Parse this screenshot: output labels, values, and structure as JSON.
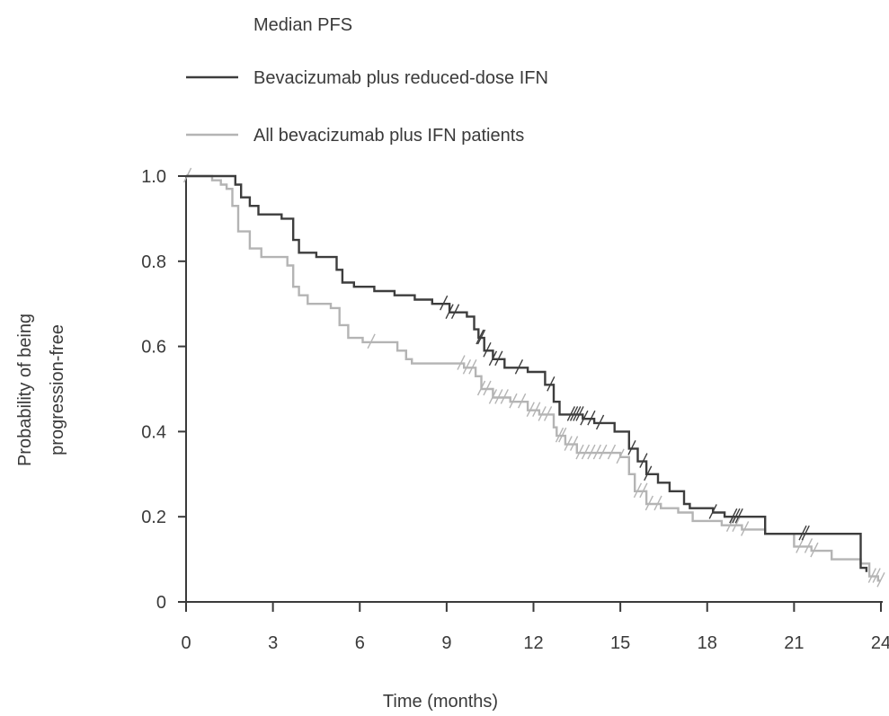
{
  "chart_data": {
    "type": "line",
    "title": "",
    "legend_title": "Median PFS",
    "xlabel": "Time (months)",
    "ylabel_lines": [
      "Probability of being",
      "progression-free"
    ],
    "xlim": [
      0,
      24
    ],
    "ylim": [
      0,
      1.0
    ],
    "x_ticks": [
      0,
      3,
      6,
      9,
      12,
      15,
      18,
      21,
      24
    ],
    "y_ticks": [
      0,
      0.2,
      0.4,
      0.6,
      0.8,
      1.0
    ],
    "y_tick_labels": [
      "0",
      "0.2",
      "0.4",
      "0.6",
      "0.8",
      "1.0"
    ],
    "grid": false,
    "legend_position": "top",
    "series": [
      {
        "name": "Bevacizumab plus reduced-dose IFN",
        "color": "#3d3d3d",
        "step": true,
        "points": [
          [
            0,
            1.0
          ],
          [
            1.7,
            0.98
          ],
          [
            1.9,
            0.95
          ],
          [
            2.2,
            0.93
          ],
          [
            2.5,
            0.91
          ],
          [
            3.3,
            0.9
          ],
          [
            3.7,
            0.85
          ],
          [
            3.9,
            0.82
          ],
          [
            4.5,
            0.81
          ],
          [
            5.2,
            0.78
          ],
          [
            5.4,
            0.75
          ],
          [
            5.8,
            0.74
          ],
          [
            6.5,
            0.73
          ],
          [
            7.2,
            0.72
          ],
          [
            7.9,
            0.71
          ],
          [
            8.5,
            0.7
          ],
          [
            9.1,
            0.68
          ],
          [
            9.7,
            0.67
          ],
          [
            9.95,
            0.64
          ],
          [
            10.1,
            0.62
          ],
          [
            10.3,
            0.59
          ],
          [
            10.6,
            0.57
          ],
          [
            11.0,
            0.55
          ],
          [
            11.8,
            0.54
          ],
          [
            12.4,
            0.51
          ],
          [
            12.7,
            0.47
          ],
          [
            12.9,
            0.44
          ],
          [
            13.7,
            0.43
          ],
          [
            14.1,
            0.42
          ],
          [
            14.8,
            0.4
          ],
          [
            15.3,
            0.36
          ],
          [
            15.6,
            0.33
          ],
          [
            15.9,
            0.3
          ],
          [
            16.3,
            0.28
          ],
          [
            16.7,
            0.26
          ],
          [
            17.2,
            0.23
          ],
          [
            17.4,
            0.22
          ],
          [
            18.2,
            0.21
          ],
          [
            18.6,
            0.2
          ],
          [
            20.0,
            0.16
          ],
          [
            23.3,
            0.08
          ],
          [
            23.5,
            0.07
          ]
        ],
        "censor_x": [
          8.9,
          9.1,
          9.3,
          10.15,
          10.2,
          10.4,
          10.6,
          10.8,
          11.5,
          12.6,
          13.3,
          13.4,
          13.5,
          13.6,
          13.75,
          14.0,
          14.3,
          15.4,
          15.8,
          15.95,
          18.2,
          18.9,
          19.0,
          19.1,
          21.3,
          21.4
        ]
      },
      {
        "name": "All bevacizumab plus IFN patients",
        "color": "#b4b4b4",
        "step": true,
        "points": [
          [
            0,
            1.0
          ],
          [
            0.9,
            0.99
          ],
          [
            1.2,
            0.98
          ],
          [
            1.4,
            0.97
          ],
          [
            1.6,
            0.93
          ],
          [
            1.8,
            0.87
          ],
          [
            2.2,
            0.83
          ],
          [
            2.6,
            0.81
          ],
          [
            3.5,
            0.79
          ],
          [
            3.7,
            0.74
          ],
          [
            3.9,
            0.72
          ],
          [
            4.2,
            0.7
          ],
          [
            5.0,
            0.69
          ],
          [
            5.3,
            0.65
          ],
          [
            5.6,
            0.62
          ],
          [
            6.1,
            0.61
          ],
          [
            7.3,
            0.59
          ],
          [
            7.6,
            0.57
          ],
          [
            7.8,
            0.56
          ],
          [
            9.6,
            0.55
          ],
          [
            10.0,
            0.53
          ],
          [
            10.2,
            0.5
          ],
          [
            10.6,
            0.48
          ],
          [
            11.2,
            0.47
          ],
          [
            11.8,
            0.45
          ],
          [
            12.2,
            0.44
          ],
          [
            12.7,
            0.41
          ],
          [
            12.8,
            0.39
          ],
          [
            13.1,
            0.37
          ],
          [
            13.5,
            0.35
          ],
          [
            15.0,
            0.34
          ],
          [
            15.3,
            0.3
          ],
          [
            15.5,
            0.26
          ],
          [
            15.9,
            0.23
          ],
          [
            16.4,
            0.22
          ],
          [
            17.0,
            0.21
          ],
          [
            17.5,
            0.19
          ],
          [
            18.5,
            0.18
          ],
          [
            19.2,
            0.17
          ],
          [
            20.0,
            0.16
          ],
          [
            21.0,
            0.13
          ],
          [
            21.6,
            0.12
          ],
          [
            22.3,
            0.1
          ],
          [
            23.3,
            0.09
          ],
          [
            23.6,
            0.06
          ],
          [
            23.9,
            0.05
          ]
        ],
        "censor_x": [
          0.05,
          6.4,
          9.5,
          9.7,
          9.9,
          10.2,
          10.4,
          10.6,
          10.8,
          11.0,
          11.3,
          11.6,
          11.9,
          12.1,
          12.3,
          12.5,
          12.9,
          13.0,
          13.2,
          13.4,
          13.6,
          13.8,
          14.0,
          14.2,
          14.4,
          14.7,
          15.0,
          15.6,
          15.8,
          16.0,
          16.3,
          18.8,
          19.0,
          19.3,
          21.2,
          21.5,
          21.7,
          23.7,
          23.85,
          24.0
        ]
      }
    ]
  }
}
